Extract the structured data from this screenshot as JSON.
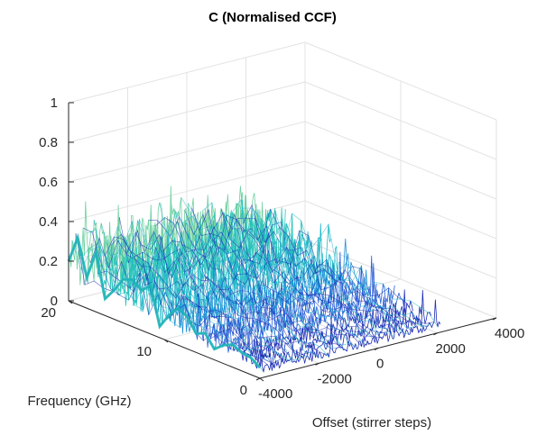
{
  "chart_data": {
    "type": "surface-mesh-3d",
    "title": "C (Normalised CCF)",
    "xlabel": "Offset (stirrer steps)",
    "ylabel": "Frequency (GHz)",
    "zlabel": "",
    "xlim": [
      -4000,
      4000
    ],
    "ylim": [
      0,
      20
    ],
    "zlim": [
      0,
      1
    ],
    "x_ticks": [
      -4000,
      -2000,
      0,
      2000,
      4000
    ],
    "y_ticks": [
      0,
      10,
      20
    ],
    "z_ticks": [
      0,
      0.2,
      0.4,
      0.6,
      0.8,
      1
    ],
    "x_tick_labels": [
      "-4000",
      "-2000",
      "0",
      "2000",
      "4000"
    ],
    "y_tick_labels": [
      "0",
      "10",
      "20"
    ],
    "z_tick_labels": [
      "0",
      "0.2",
      "0.4",
      "0.6",
      "0.8",
      "1"
    ],
    "grid": true,
    "data_extent": {
      "x": [
        -4000,
        2100
      ],
      "y": [
        0,
        20
      ]
    },
    "value_profile": {
      "typical_range": [
        0.05,
        0.3
      ],
      "max": 0.5,
      "y_at_peak_activity": 20,
      "note_source": "noisy mesh; values rise from ~0.05 at frequency 0 to ~0.25 near frequency 20"
    },
    "colors": {
      "colormap": [
        "#1f2fb5",
        "#2a5fd8",
        "#1e8fd8",
        "#22b8c8",
        "#27c4b8",
        "#6fd0a0"
      ],
      "grid": "#e3e3e3",
      "axis": "#262626"
    }
  }
}
